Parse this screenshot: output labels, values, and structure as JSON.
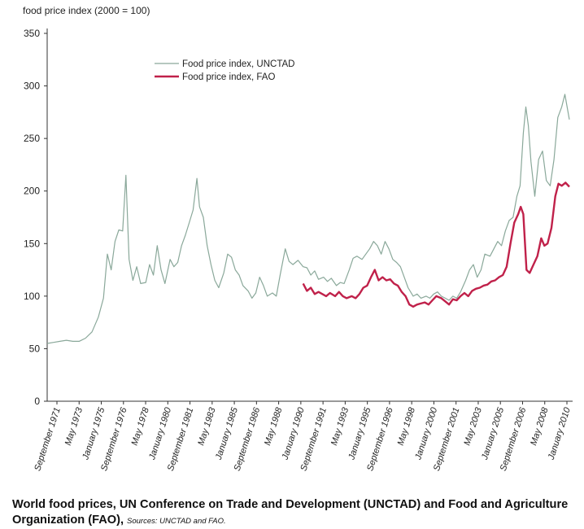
{
  "chart_data": {
    "type": "line",
    "ylabel": "food price index (2000 = 100)",
    "ylim": [
      0,
      350
    ],
    "yticks": [
      0,
      50,
      100,
      150,
      200,
      250,
      300,
      350
    ],
    "x_tick_labels": [
      "September 1971",
      "May 1973",
      "January 1975",
      "September 1976",
      "May 1978",
      "January 1980",
      "September 1981",
      "May 1983",
      "January 1985",
      "September 1986",
      "May 1988",
      "January 1990",
      "September 1991",
      "May 1993",
      "January 1995",
      "September 1996",
      "May 1998",
      "January 2000",
      "September 2001",
      "May 2003",
      "January 2005",
      "September 2006",
      "May 2008",
      "January 2010"
    ],
    "x_range": [
      1970.0,
      2010.8
    ],
    "legend_position": "top-center",
    "grid": false,
    "series": [
      {
        "name": "Food price index, UNCTAD",
        "color": "#8aa89a",
        "points": [
          [
            1970.0,
            55
          ],
          [
            1970.5,
            56
          ],
          [
            1971.0,
            57
          ],
          [
            1971.5,
            58
          ],
          [
            1972.0,
            57
          ],
          [
            1972.5,
            57
          ],
          [
            1973.0,
            60
          ],
          [
            1973.5,
            66
          ],
          [
            1974.0,
            80
          ],
          [
            1974.4,
            98
          ],
          [
            1974.7,
            140
          ],
          [
            1975.0,
            125
          ],
          [
            1975.3,
            152
          ],
          [
            1975.6,
            163
          ],
          [
            1975.9,
            162
          ],
          [
            1976.15,
            215
          ],
          [
            1976.4,
            135
          ],
          [
            1976.7,
            115
          ],
          [
            1977.0,
            128
          ],
          [
            1977.3,
            112
          ],
          [
            1977.7,
            113
          ],
          [
            1978.0,
            130
          ],
          [
            1978.3,
            120
          ],
          [
            1978.6,
            148
          ],
          [
            1978.9,
            125
          ],
          [
            1979.2,
            112
          ],
          [
            1979.6,
            135
          ],
          [
            1979.9,
            128
          ],
          [
            1980.2,
            132
          ],
          [
            1980.5,
            148
          ],
          [
            1980.8,
            158
          ],
          [
            1981.1,
            170
          ],
          [
            1981.4,
            182
          ],
          [
            1981.7,
            212
          ],
          [
            1981.9,
            185
          ],
          [
            1982.2,
            175
          ],
          [
            1982.5,
            148
          ],
          [
            1982.8,
            130
          ],
          [
            1983.1,
            115
          ],
          [
            1983.4,
            108
          ],
          [
            1983.8,
            122
          ],
          [
            1984.1,
            140
          ],
          [
            1984.4,
            137
          ],
          [
            1984.7,
            125
          ],
          [
            1985.0,
            120
          ],
          [
            1985.3,
            110
          ],
          [
            1985.7,
            105
          ],
          [
            1986.0,
            98
          ],
          [
            1986.3,
            103
          ],
          [
            1986.6,
            118
          ],
          [
            1986.9,
            110
          ],
          [
            1987.2,
            100
          ],
          [
            1987.6,
            103
          ],
          [
            1987.9,
            100
          ],
          [
            1988.2,
            120
          ],
          [
            1988.6,
            145
          ],
          [
            1988.9,
            133
          ],
          [
            1989.2,
            130
          ],
          [
            1989.6,
            134
          ],
          [
            1990.0,
            128
          ],
          [
            1990.3,
            127
          ],
          [
            1990.6,
            120
          ],
          [
            1990.9,
            124
          ],
          [
            1991.2,
            116
          ],
          [
            1991.6,
            118
          ],
          [
            1991.9,
            114
          ],
          [
            1992.2,
            117
          ],
          [
            1992.6,
            110
          ],
          [
            1992.9,
            113
          ],
          [
            1993.2,
            112
          ],
          [
            1993.6,
            125
          ],
          [
            1993.9,
            136
          ],
          [
            1994.2,
            138
          ],
          [
            1994.6,
            135
          ],
          [
            1994.9,
            140
          ],
          [
            1995.2,
            145
          ],
          [
            1995.5,
            152
          ],
          [
            1995.8,
            148
          ],
          [
            1996.1,
            140
          ],
          [
            1996.4,
            152
          ],
          [
            1996.7,
            145
          ],
          [
            1997.0,
            135
          ],
          [
            1997.3,
            132
          ],
          [
            1997.6,
            128
          ],
          [
            1997.9,
            118
          ],
          [
            1998.2,
            108
          ],
          [
            1998.6,
            100
          ],
          [
            1998.9,
            102
          ],
          [
            1999.2,
            98
          ],
          [
            1999.6,
            100
          ],
          [
            1999.9,
            98
          ],
          [
            2000.2,
            102
          ],
          [
            2000.5,
            104
          ],
          [
            2000.8,
            100
          ],
          [
            2001.1,
            98
          ],
          [
            2001.4,
            96
          ],
          [
            2001.7,
            100
          ],
          [
            2002.0,
            98
          ],
          [
            2002.3,
            104
          ],
          [
            2002.7,
            115
          ],
          [
            2003.0,
            125
          ],
          [
            2003.3,
            130
          ],
          [
            2003.6,
            118
          ],
          [
            2003.9,
            125
          ],
          [
            2004.2,
            140
          ],
          [
            2004.6,
            138
          ],
          [
            2004.9,
            145
          ],
          [
            2005.2,
            152
          ],
          [
            2005.5,
            148
          ],
          [
            2005.8,
            162
          ],
          [
            2006.1,
            172
          ],
          [
            2006.4,
            175
          ],
          [
            2006.7,
            195
          ],
          [
            2006.95,
            205
          ],
          [
            2007.2,
            255
          ],
          [
            2007.4,
            280
          ],
          [
            2007.6,
            262
          ],
          [
            2007.8,
            228
          ],
          [
            2008.1,
            195
          ],
          [
            2008.4,
            230
          ],
          [
            2008.7,
            238
          ],
          [
            2009.0,
            210
          ],
          [
            2009.3,
            205
          ],
          [
            2009.6,
            230
          ],
          [
            2009.9,
            270
          ],
          [
            2010.2,
            280
          ],
          [
            2010.45,
            292
          ],
          [
            2010.8,
            268
          ]
        ]
      },
      {
        "name": "Food price index, FAO",
        "color": "#c0214a",
        "points": [
          [
            1990.0,
            112
          ],
          [
            1990.3,
            105
          ],
          [
            1990.6,
            108
          ],
          [
            1990.9,
            102
          ],
          [
            1991.2,
            104
          ],
          [
            1991.5,
            102
          ],
          [
            1991.8,
            100
          ],
          [
            1992.1,
            103
          ],
          [
            1992.5,
            100
          ],
          [
            1992.8,
            104
          ],
          [
            1993.1,
            100
          ],
          [
            1993.4,
            98
          ],
          [
            1993.8,
            100
          ],
          [
            1994.1,
            98
          ],
          [
            1994.4,
            102
          ],
          [
            1994.7,
            108
          ],
          [
            1995.0,
            110
          ],
          [
            1995.3,
            118
          ],
          [
            1995.6,
            125
          ],
          [
            1995.9,
            115
          ],
          [
            1996.2,
            118
          ],
          [
            1996.5,
            115
          ],
          [
            1996.8,
            116
          ],
          [
            1997.1,
            112
          ],
          [
            1997.4,
            110
          ],
          [
            1997.7,
            104
          ],
          [
            1998.0,
            100
          ],
          [
            1998.3,
            92
          ],
          [
            1998.6,
            90
          ],
          [
            1998.9,
            92
          ],
          [
            1999.2,
            93
          ],
          [
            1999.5,
            94
          ],
          [
            1999.8,
            92
          ],
          [
            2000.1,
            96
          ],
          [
            2000.4,
            100
          ],
          [
            2000.8,
            98
          ],
          [
            2001.1,
            95
          ],
          [
            2001.4,
            92
          ],
          [
            2001.7,
            97
          ],
          [
            2002.0,
            96
          ],
          [
            2002.3,
            100
          ],
          [
            2002.6,
            103
          ],
          [
            2002.9,
            100
          ],
          [
            2003.2,
            105
          ],
          [
            2003.5,
            107
          ],
          [
            2003.8,
            108
          ],
          [
            2004.1,
            110
          ],
          [
            2004.4,
            111
          ],
          [
            2004.7,
            114
          ],
          [
            2005.0,
            115
          ],
          [
            2005.3,
            118
          ],
          [
            2005.6,
            120
          ],
          [
            2005.9,
            128
          ],
          [
            2006.2,
            150
          ],
          [
            2006.5,
            170
          ],
          [
            2006.8,
            178
          ],
          [
            2007.0,
            185
          ],
          [
            2007.2,
            178
          ],
          [
            2007.45,
            125
          ],
          [
            2007.7,
            122
          ],
          [
            2008.0,
            130
          ],
          [
            2008.3,
            138
          ],
          [
            2008.6,
            155
          ],
          [
            2008.85,
            148
          ],
          [
            2009.1,
            150
          ],
          [
            2009.4,
            165
          ],
          [
            2009.7,
            195
          ],
          [
            2009.95,
            207
          ],
          [
            2010.2,
            205
          ],
          [
            2010.5,
            208
          ],
          [
            2010.8,
            204
          ]
        ]
      }
    ]
  },
  "caption": {
    "title": "World food prices, UN Conference on Trade and Development (UNCTAD) and Food and Agriculture Organization (FAO),",
    "sources": "Sources: UNCTAD and FAO."
  }
}
